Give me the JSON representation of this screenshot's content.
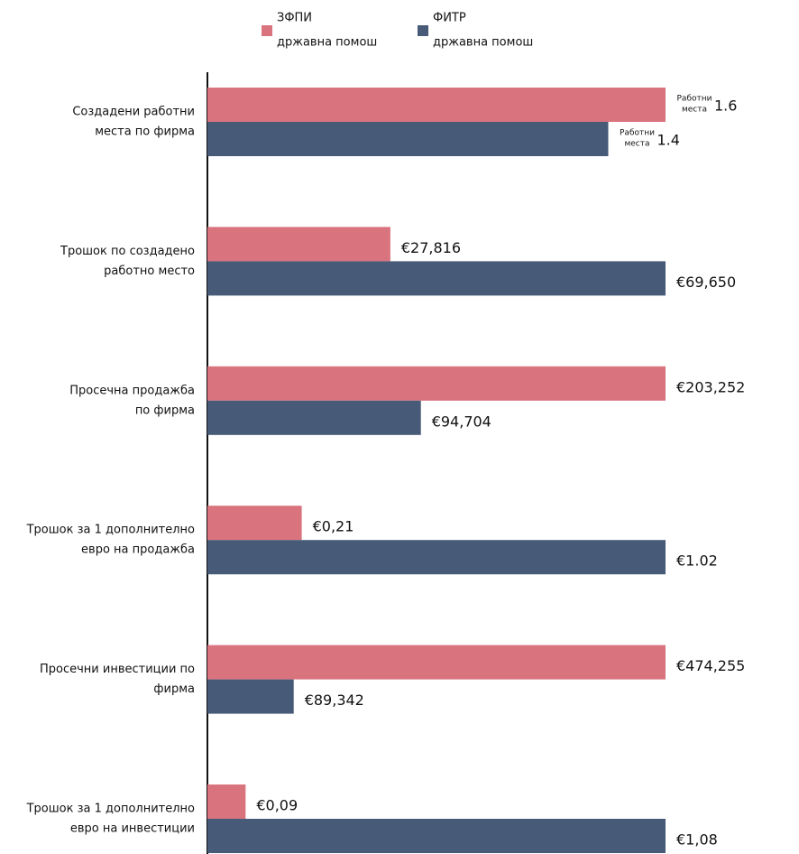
{
  "chart_data": {
    "type": "bar",
    "orientation": "horizontal",
    "categories": [
      [
        "Создадени работни",
        "места по фирма"
      ],
      [
        "Трошок по создадено",
        "работно место"
      ],
      [
        "Просечна продажба",
        "по фирма"
      ],
      [
        "Трошок за 1 дополнително",
        "евро на продажба"
      ],
      [
        "Просечни инвестиции по",
        "фирма"
      ],
      [
        "Трошок за 1 дополнително",
        "евро на инвестиции"
      ]
    ],
    "legend_note": "државна помош",
    "unit_note": [
      "Работни",
      "места"
    ],
    "series": [
      {
        "name": "ЗФПИ",
        "color": "#d9737e",
        "values": [
          1.6,
          27816,
          203252,
          0.21,
          474255,
          0.09
        ],
        "value_labels": [
          "1.6",
          "€27,816",
          "€203,252",
          "€0,21",
          "€474,255",
          "€0,09"
        ]
      },
      {
        "name": "ФИТР",
        "color": "#475a78",
        "values": [
          1.4,
          69650,
          94704,
          1.02,
          89342,
          1.08
        ],
        "value_labels": [
          "1.4",
          "€69,650",
          "€94,704",
          "€1.02",
          "€89,342",
          "€1,08"
        ]
      }
    ]
  }
}
